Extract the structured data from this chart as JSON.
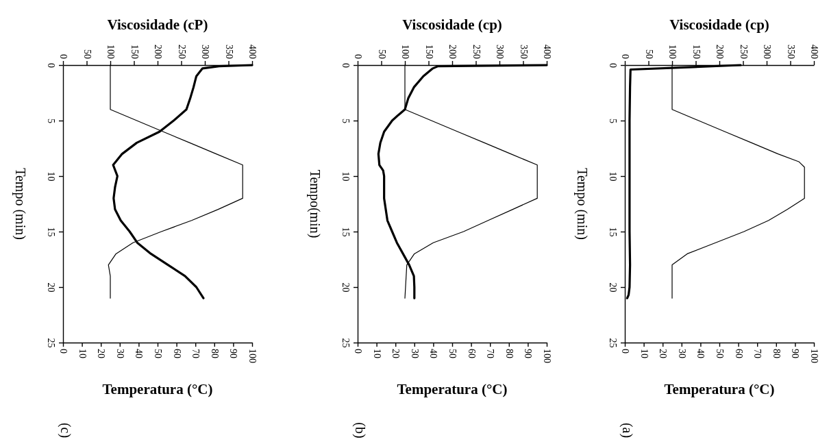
{
  "chart_data": [
    {
      "type": "line",
      "title": "(c)",
      "ylabel": "Tempo (min)",
      "x2label": "Viscosidade (cP)",
      "xlabel": "Temperatura (°C)",
      "ylim": [
        25,
        0
      ],
      "yticks": [
        0,
        5,
        10,
        15,
        20,
        25
      ],
      "x2lim": [
        0,
        400
      ],
      "x2ticks": [
        0,
        50,
        100,
        150,
        200,
        250,
        300,
        350,
        400
      ],
      "xlim": [
        0,
        100
      ],
      "xticks": [
        0,
        10,
        20,
        30,
        40,
        50,
        60,
        70,
        80,
        90,
        100
      ],
      "series": [
        {
          "color": "#000000",
          "axis": "x2",
          "values": [
            0,
            0.1,
            0.3,
            1,
            2,
            3,
            4,
            5,
            6,
            7,
            8,
            9,
            10,
            11,
            12,
            13,
            14,
            15,
            16,
            17,
            18,
            19,
            20,
            21
          ],
          "x": [
            400,
            330,
            295,
            282,
            276,
            269,
            261,
            234,
            204,
            156,
            125,
            106,
            115,
            110,
            107,
            110,
            122,
            141,
            157,
            186,
            222,
            258,
            282,
            297
          ]
        },
        {
          "color": "#000000",
          "values": [
            0,
            4,
            5,
            6,
            7,
            8,
            9,
            12,
            13,
            14,
            15,
            16,
            17,
            18,
            19,
            21
          ],
          "x": [
            25,
            25,
            39,
            53,
            67,
            81,
            95,
            95,
            82,
            68,
            52,
            37,
            28,
            24,
            25,
            25
          ]
        }
      ]
    },
    {
      "type": "line",
      "title": "(b)",
      "ylabel": "Tempo(min)",
      "x2label": "Viscosidade (cp)",
      "xlabel": "Temperatura (°C)",
      "ylim": [
        25,
        0
      ],
      "yticks": [
        0,
        5,
        10,
        15,
        20,
        25
      ],
      "x2lim": [
        0,
        400
      ],
      "x2ticks": [
        0,
        50,
        100,
        150,
        200,
        250,
        300,
        350,
        400
      ],
      "xlim": [
        0,
        100
      ],
      "xticks": [
        0,
        10,
        20,
        30,
        40,
        50,
        60,
        70,
        80,
        90,
        100
      ],
      "series": [
        {
          "color": "#000000",
          "axis": "x2",
          "values": [
            0,
            0.1,
            0.3,
            1,
            2,
            3,
            4,
            4.5,
            5,
            6,
            7,
            8,
            9,
            9.5,
            10,
            12,
            14,
            15,
            16,
            17,
            18,
            19,
            20,
            21
          ],
          "x": [
            400,
            170,
            159,
            139,
            119,
            107,
            100,
            86,
            73,
            56,
            48,
            44,
            46,
            54,
            56,
            56,
            63,
            73,
            83,
            96,
            109,
            119,
            120,
            120
          ]
        },
        {
          "color": "#000000",
          "values": [
            0,
            4,
            5,
            6,
            7,
            8,
            9,
            12,
            13,
            14,
            15,
            16,
            17,
            18,
            21
          ],
          "x": [
            25,
            25,
            39,
            53,
            67,
            81,
            95,
            95,
            82,
            69,
            56,
            40,
            30,
            26,
            25
          ]
        }
      ]
    },
    {
      "type": "line",
      "title": "(a)",
      "ylabel": "Tempo (min)",
      "x2label": "Viscosidade (cp)",
      "xlabel": "Temperatura (°C)",
      "ylim": [
        25,
        0
      ],
      "yticks": [
        0,
        5,
        10,
        15,
        20,
        25
      ],
      "x2lim": [
        0,
        400
      ],
      "x2ticks": [
        0,
        50,
        100,
        150,
        200,
        250,
        300,
        350,
        400
      ],
      "xlim": [
        0,
        100
      ],
      "xticks": [
        0,
        10,
        20,
        30,
        40,
        50,
        60,
        70,
        80,
        90,
        100
      ],
      "series": [
        {
          "color": "#000000",
          "axis": "x2",
          "values": [
            0,
            0.4,
            2,
            5,
            8,
            10,
            12,
            15,
            18,
            20,
            20.7,
            21
          ],
          "x": [
            245,
            12,
            11,
            10,
            10,
            10,
            10,
            10,
            11,
            10,
            8,
            5
          ]
        },
        {
          "color": "#000000",
          "values": [
            0,
            4,
            5,
            6,
            7,
            8,
            8.7,
            9.2,
            12,
            13,
            14,
            15,
            16,
            17,
            18,
            19,
            21
          ],
          "x": [
            25,
            25,
            39,
            53,
            67,
            81,
            92,
            95,
            95,
            86,
            76,
            63,
            48,
            33,
            25,
            25,
            25
          ]
        }
      ]
    }
  ]
}
